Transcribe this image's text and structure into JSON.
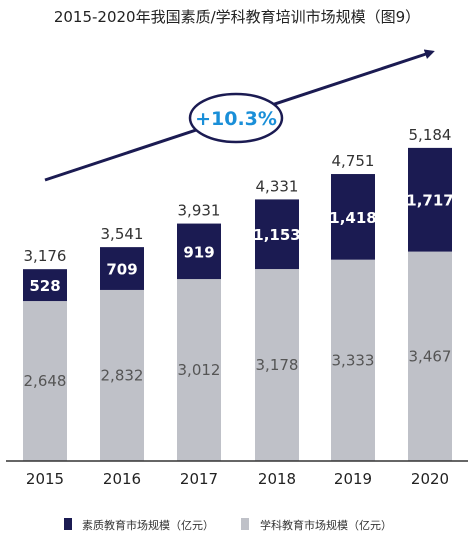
{
  "chart_data": {
    "type": "bar",
    "stacked": true,
    "title": "2015-2020年我国素质/学科教育培训市场规模（图9）",
    "categories": [
      "2015",
      "2016",
      "2017",
      "2018",
      "2019",
      "2020"
    ],
    "series": [
      {
        "name": "学科教育市场规模（亿元）",
        "values": [
          2648,
          2832,
          3012,
          3178,
          3333,
          3467
        ],
        "color": "#bfc1c8"
      },
      {
        "name": "素质教育市场规模（亿元）",
        "values": [
          528,
          709,
          919,
          1153,
          1418,
          1717
        ],
        "color": "#1b1b52"
      }
    ],
    "totals": [
      3176,
      3541,
      3931,
      4331,
      4751,
      5184
    ],
    "value_labels": {
      "totals": [
        "3,176",
        "3,541",
        "3,931",
        "4,331",
        "4,751",
        "5,184"
      ],
      "top": [
        "528",
        "709",
        "919",
        "1,153",
        "1,418",
        "1,717"
      ],
      "bottom": [
        "2,648",
        "2,832",
        "3,012",
        "3,178",
        "3,333",
        "3,467"
      ]
    },
    "annotation": "+10.3%",
    "legend_position": "bottom",
    "grid": false
  },
  "colors": {
    "arrow": "#1b1b52",
    "annotation_text": "#1a8fd8",
    "axis": "#333333"
  }
}
